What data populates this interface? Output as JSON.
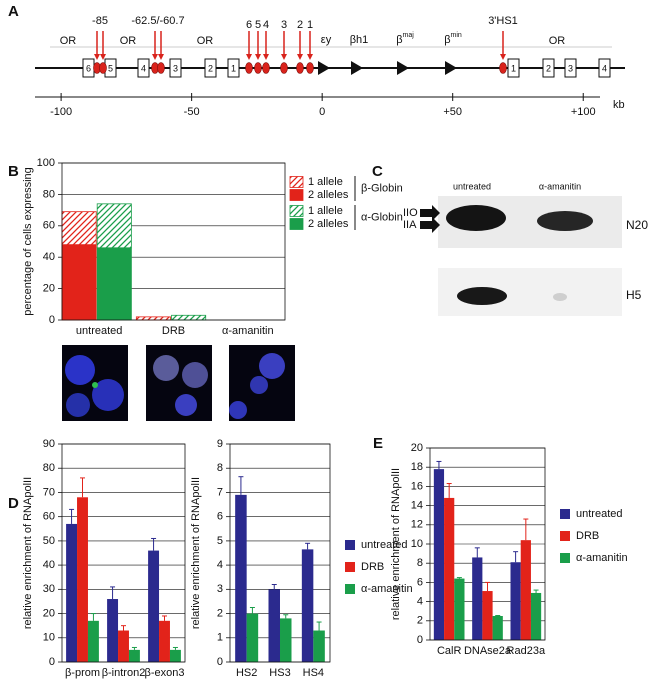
{
  "panel_labels": [
    "A",
    "B",
    "C",
    "D",
    "E"
  ],
  "panel_a": {
    "open_reading_frames": [
      "OR",
      "OR",
      "OR",
      "OR"
    ],
    "hypersensitive_sites": [
      "-85",
      "-62.5/-60.7",
      "6",
      "5",
      "4",
      "3",
      "2",
      "1",
      "3'HS1"
    ],
    "genes": [
      {
        "label": "εy"
      },
      {
        "label": "βh1"
      },
      {
        "label": "β",
        "superscript": "maj"
      },
      {
        "label": "β",
        "superscript": "min"
      }
    ],
    "or_genes_left": [
      "6",
      "5",
      "4",
      "3",
      "2",
      "1"
    ],
    "or_genes_right": [
      "1",
      "2",
      "3",
      "4"
    ],
    "axis": {
      "xlim": [
        -110,
        116
      ],
      "xticks": [
        -100,
        -50,
        0,
        {
          "value": 50,
          "label": "+50"
        },
        {
          "value": 100,
          "label": "+100"
        }
      ],
      "unit": "kb"
    }
  },
  "panel_c": {
    "columns": [
      "untreated",
      "α-amanitin"
    ],
    "bands": [
      "IIO",
      "IIA"
    ],
    "antibodies": [
      "N20",
      "H5"
    ]
  },
  "chart_data": [
    {
      "type": "stacked_bar",
      "ylabel": "percentage of cells expressing",
      "categories": [
        "untreated",
        "DRB",
        "α-amanitin"
      ],
      "ylim": [
        0,
        100
      ],
      "yticks": [
        0,
        20,
        40,
        60,
        80,
        100
      ],
      "grid": true,
      "legend": "right",
      "groups": [
        {
          "name": "β-Globin",
          "series": [
            {
              "name": "2 alleles",
              "color": "#e2231a",
              "pattern": "solid",
              "values": [
                48,
                0,
                0
              ]
            },
            {
              "name": "1 allele",
              "color": "#e2231a",
              "pattern": "hatch",
              "values": [
                21,
                2,
                0
              ]
            }
          ]
        },
        {
          "name": "α-Globin",
          "series": [
            {
              "name": "2 alleles",
              "color": "#1a9e4a",
              "pattern": "solid",
              "values": [
                46,
                0,
                0
              ]
            },
            {
              "name": "1 allele",
              "color": "#1a9e4a",
              "pattern": "hatch",
              "values": [
                28,
                3,
                0
              ]
            }
          ]
        }
      ]
    },
    {
      "type": "bar",
      "ylabel": "relative enrichment of RNApolII",
      "categories": [
        "β-prom",
        "β-intron2",
        "β-exon3"
      ],
      "ylim": [
        0,
        90
      ],
      "yticks": [
        0,
        10,
        20,
        30,
        40,
        50,
        60,
        70,
        80,
        90
      ],
      "grid": true,
      "series": [
        {
          "color": "#2b2a8e",
          "values": [
            57,
            26,
            46
          ],
          "errors": [
            6,
            5,
            5
          ]
        },
        {
          "color": "#e2231a",
          "values": [
            68,
            13,
            17
          ],
          "errors": [
            8,
            2,
            2
          ]
        },
        {
          "color": "#1a9e4a",
          "values": [
            17,
            5,
            5
          ],
          "errors": [
            3,
            1,
            1
          ]
        }
      ]
    },
    {
      "type": "bar",
      "ylabel": "relative enrichment of RNApolII",
      "categories": [
        "HS2",
        "HS3",
        "HS4"
      ],
      "ylim": [
        0,
        9
      ],
      "yticks": [
        0,
        1,
        2,
        3,
        4,
        5,
        6,
        7,
        8,
        9
      ],
      "grid": true,
      "legend": "right",
      "series": [
        {
          "name": "untreated",
          "color": "#2b2a8e",
          "values": [
            6.9,
            3.0,
            4.65
          ],
          "errors": [
            0.75,
            0.2,
            0.25
          ]
        },
        {
          "name": "DRB",
          "color": "#e2231a",
          "values": [
            null,
            null,
            null
          ],
          "errors": [
            null,
            null,
            null
          ]
        },
        {
          "name": "α-amanitin",
          "color": "#1a9e4a",
          "values": [
            2.0,
            1.8,
            1.3
          ],
          "errors": [
            0.25,
            0.15,
            0.35
          ]
        }
      ]
    },
    {
      "type": "bar",
      "ylabel": "relative enrichment of RNApolII",
      "categories": [
        "CalR",
        "DNAse2a",
        "Rad23a"
      ],
      "ylim": [
        0,
        20
      ],
      "yticks": [
        0,
        2,
        4,
        6,
        8,
        10,
        12,
        14,
        16,
        18,
        20
      ],
      "grid": true,
      "legend": "right",
      "series": [
        {
          "name": "untreated",
          "color": "#2b2a8e",
          "values": [
            17.8,
            8.6,
            8.1
          ],
          "errors": [
            0.8,
            1.0,
            1.1
          ]
        },
        {
          "name": "DRB",
          "color": "#e2231a",
          "values": [
            14.8,
            5.1,
            10.4
          ],
          "errors": [
            1.5,
            0.9,
            2.2
          ]
        },
        {
          "name": "α-amanitin",
          "color": "#1a9e4a",
          "values": [
            6.4,
            2.5,
            4.9
          ],
          "errors": [
            0.1,
            0.05,
            0.3
          ]
        }
      ]
    }
  ]
}
